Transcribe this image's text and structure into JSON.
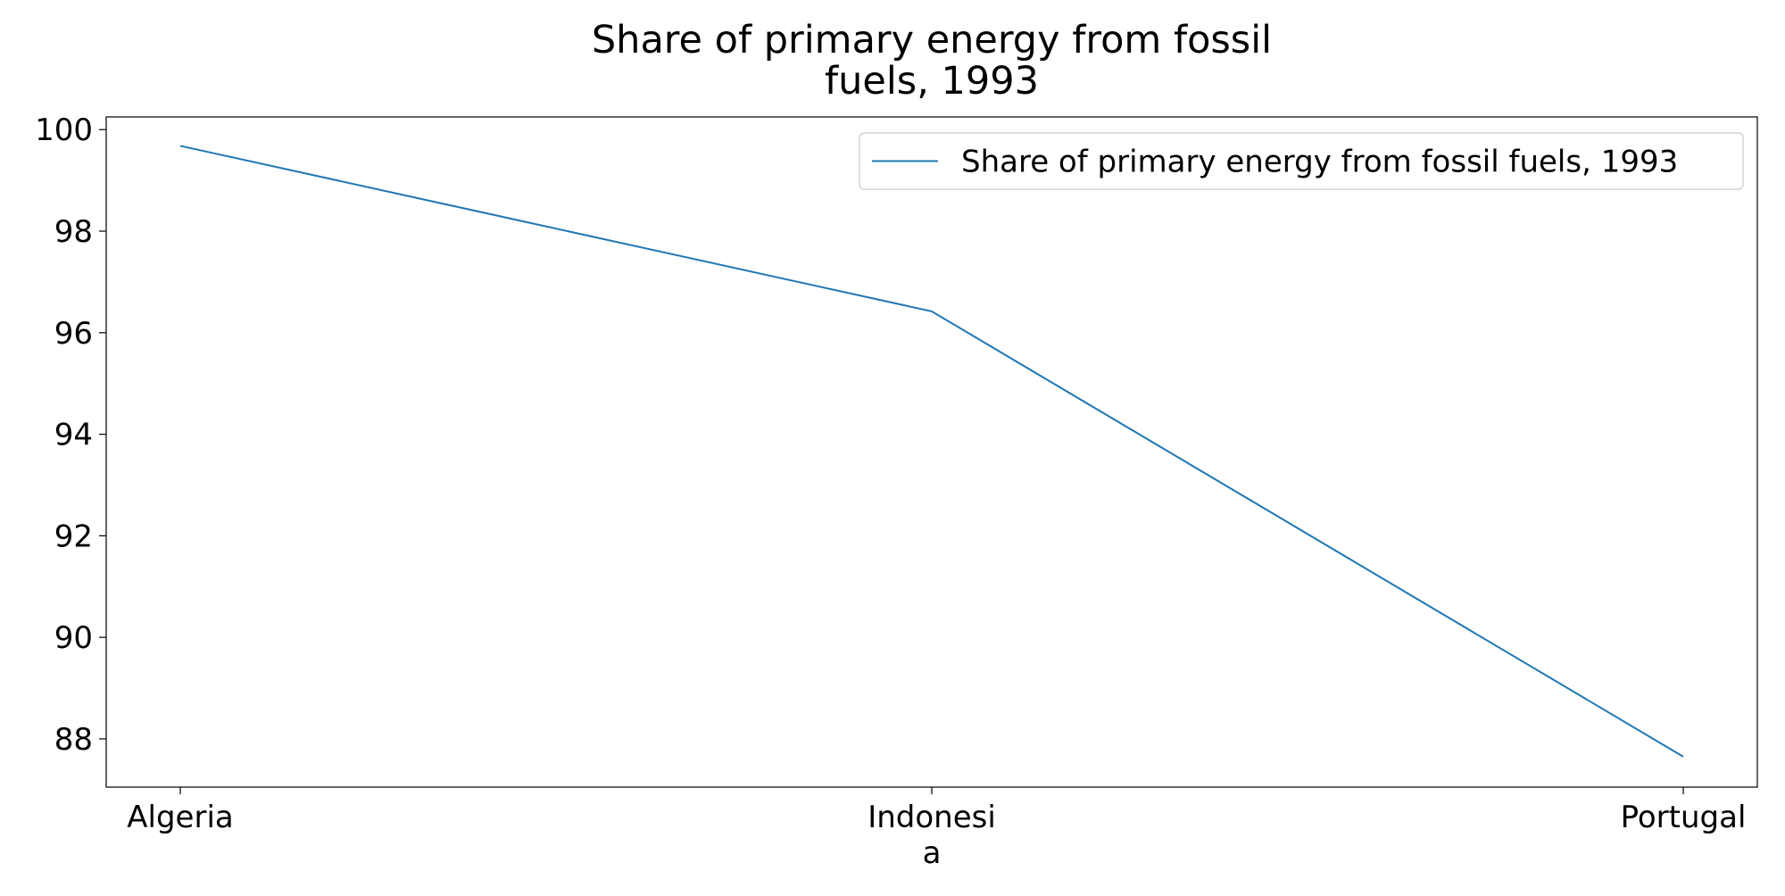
{
  "chart_data": {
    "type": "line",
    "title_lines": [
      "Share of primary energy from fossil",
      "fuels, 1993"
    ],
    "categories": [
      "Algeria",
      "Indonesia",
      "Portugal"
    ],
    "category_tick_lines": [
      [
        "Algeria"
      ],
      [
        "Indonesi",
        "a"
      ],
      [
        "Portugal"
      ]
    ],
    "series": [
      {
        "name": "Share of primary energy from fossil fuels, 1993",
        "values": [
          99.68,
          96.42,
          87.65
        ],
        "color": "#1f77b4"
      }
    ],
    "xlabel": "",
    "ylabel": "",
    "ylim": [
      87.05,
      100.25
    ],
    "yticks": [
      88,
      90,
      92,
      94,
      96,
      98,
      100
    ],
    "grid": false,
    "legend_position": "top-right"
  }
}
